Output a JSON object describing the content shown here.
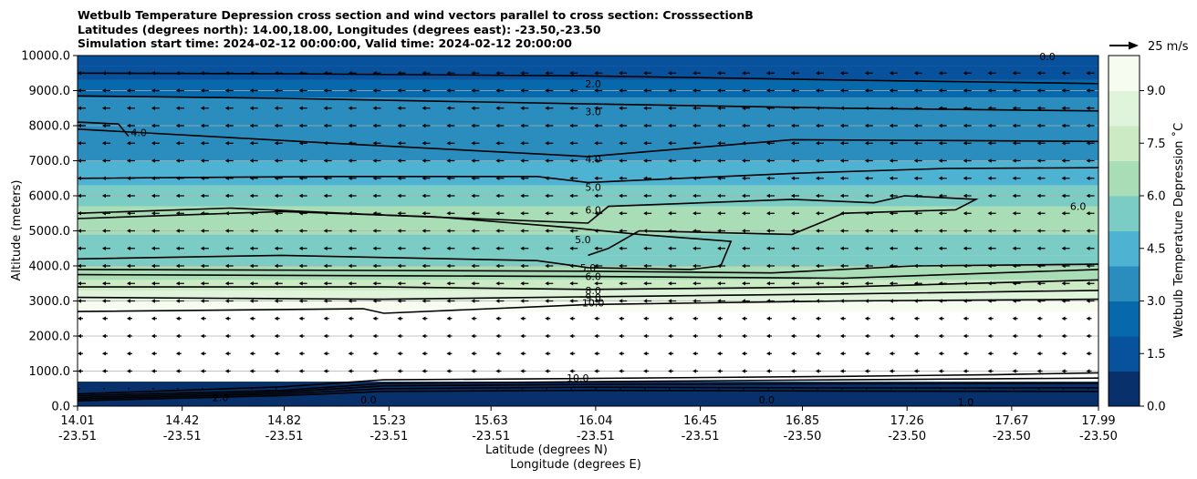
{
  "title": {
    "line1": "Wetbulb Temperature Depression cross section and wind vectors parallel to cross section: CrosssectionB",
    "line2": "Latitudes (degrees north): 14.00,18.00, Longitudes (degrees east): -23.50,-23.50",
    "line3": "Simulation start time: 2024-02-12 00:00:00, Valid time: 2024-02-12 20:00:00"
  },
  "chart_data": {
    "type": "heatmap",
    "ylabel": "Altitude (meters)",
    "xlabel": "Latitude (degrees N)",
    "xlabel2": "Longitude (degrees E)",
    "ylim": [
      0,
      10000
    ],
    "yticks": [
      "0.0",
      "1000.0",
      "2000.0",
      "3000.0",
      "4000.0",
      "5000.0",
      "6000.0",
      "7000.0",
      "8000.0",
      "9000.0",
      "10000.0"
    ],
    "xticks": [
      {
        "lat": "14.01",
        "lon": "-23.51",
        "pos": 0.0
      },
      {
        "lat": "14.42",
        "lon": "-23.51",
        "pos": 0.1025
      },
      {
        "lat": "14.82",
        "lon": "-23.51",
        "pos": 0.2025
      },
      {
        "lat": "15.23",
        "lon": "-23.51",
        "pos": 0.305
      },
      {
        "lat": "15.63",
        "lon": "-23.51",
        "pos": 0.405
      },
      {
        "lat": "16.04",
        "lon": "-23.51",
        "pos": 0.5075
      },
      {
        "lat": "16.45",
        "lon": "-23.51",
        "pos": 0.61
      },
      {
        "lat": "16.85",
        "lon": "-23.50",
        "pos": 0.71
      },
      {
        "lat": "17.26",
        "lon": "-23.50",
        "pos": 0.8125
      },
      {
        "lat": "17.67",
        "lon": "-23.50",
        "pos": 0.915
      },
      {
        "lat": "17.99",
        "lon": "-23.50",
        "pos": 1.0
      }
    ],
    "grid": true,
    "colorbar": {
      "label": "Wetbulb Temperature Depression ˚C",
      "ticks": [
        "0.0",
        "1.5",
        "3.0",
        "4.5",
        "6.0",
        "7.5",
        "9.0"
      ],
      "range": [
        0,
        10
      ]
    },
    "wind_key": "25 m/s",
    "layers": [
      {
        "bottom": 0,
        "top": 700,
        "value": 0.5
      },
      {
        "bottom": 700,
        "top": 2700,
        "value": null
      },
      {
        "bottom": 2700,
        "top": 3000,
        "value": 9.7
      },
      {
        "bottom": 3000,
        "top": 3300,
        "value": 8.5
      },
      {
        "bottom": 3300,
        "top": 3600,
        "value": 7.5
      },
      {
        "bottom": 3600,
        "top": 4000,
        "value": 6.5
      },
      {
        "bottom": 4000,
        "top": 4300,
        "value": 5.4
      },
      {
        "bottom": 4300,
        "top": 4900,
        "value": 5.9
      },
      {
        "bottom": 4900,
        "top": 5700,
        "value": 6.6
      },
      {
        "bottom": 5700,
        "top": 6300,
        "value": 5.5
      },
      {
        "bottom": 6300,
        "top": 7000,
        "value": 4.5
      },
      {
        "bottom": 7000,
        "top": 8000,
        "value": 3.8
      },
      {
        "bottom": 8000,
        "top": 8800,
        "value": 3.2
      },
      {
        "bottom": 8800,
        "top": 9300,
        "value": 2.3
      },
      {
        "bottom": 9300,
        "top": 9700,
        "value": 1.5
      },
      {
        "bottom": 9700,
        "top": 10000,
        "value": 0.8
      }
    ],
    "contour_labels": [
      {
        "text": "2.0",
        "pos": 0.505,
        "alt": 9200
      },
      {
        "text": "3.0",
        "pos": 0.505,
        "alt": 8400
      },
      {
        "text": "4.0",
        "pos": 0.505,
        "alt": 7050
      },
      {
        "text": "5.0",
        "pos": 0.505,
        "alt": 6250
      },
      {
        "text": "6.0",
        "pos": 0.505,
        "alt": 5600
      },
      {
        "text": "5.0",
        "pos": 0.495,
        "alt": 4750
      },
      {
        "text": "5.0",
        "pos": 0.5,
        "alt": 3950
      },
      {
        "text": "6.0",
        "pos": 0.505,
        "alt": 3700
      },
      {
        "text": "8.0",
        "pos": 0.505,
        "alt": 3300
      },
      {
        "text": "9.0",
        "pos": 0.505,
        "alt": 3100
      },
      {
        "text": "10.0",
        "pos": 0.505,
        "alt": 2950
      },
      {
        "text": "10.0",
        "pos": 0.49,
        "alt": 800
      },
      {
        "text": "4.0",
        "pos": 0.06,
        "alt": 7800
      },
      {
        "text": "6.0",
        "pos": 0.98,
        "alt": 5700
      },
      {
        "text": "0.0",
        "pos": 0.285,
        "alt": 180
      },
      {
        "text": "0.0",
        "pos": 0.675,
        "alt": 180
      },
      {
        "text": "1.0",
        "pos": 0.87,
        "alt": 120
      },
      {
        "text": "2.0",
        "pos": 0.14,
        "alt": 250
      },
      {
        "text": "0.0",
        "pos": 0.95,
        "alt": 9980
      }
    ],
    "contours": [
      {
        "value": "2.0",
        "points": [
          [
            0,
            9500
          ],
          [
            0.2,
            9480
          ],
          [
            0.5,
            9420
          ],
          [
            0.75,
            9300
          ],
          [
            1,
            9200
          ]
        ]
      },
      {
        "value": "3.0",
        "points": [
          [
            0,
            8850
          ],
          [
            0.2,
            8780
          ],
          [
            0.5,
            8620
          ],
          [
            0.75,
            8500
          ],
          [
            1,
            8420
          ]
        ]
      },
      {
        "value": "4.0",
        "points": [
          [
            0,
            7900
          ],
          [
            0.25,
            7500
          ],
          [
            0.5,
            7120
          ],
          [
            0.7,
            7600
          ],
          [
            1,
            7550
          ]
        ]
      },
      {
        "value": "4.0",
        "points": [
          [
            0,
            8100
          ],
          [
            0.04,
            8050
          ],
          [
            0.05,
            7700
          ]
        ]
      },
      {
        "value": "5.0",
        "points": [
          [
            0,
            6500
          ],
          [
            0.25,
            6550
          ],
          [
            0.45,
            6550
          ],
          [
            0.5,
            6380
          ],
          [
            0.7,
            6640
          ],
          [
            0.85,
            6780
          ],
          [
            1,
            6800
          ]
        ]
      },
      {
        "value": "6.0",
        "points": [
          [
            0,
            5500
          ],
          [
            0.15,
            5650
          ],
          [
            0.3,
            5450
          ],
          [
            0.5,
            5220
          ],
          [
            0.52,
            5700
          ],
          [
            0.7,
            5900
          ],
          [
            0.78,
            5800
          ],
          [
            0.81,
            6000
          ],
          [
            0.88,
            5900
          ],
          [
            0.86,
            5600
          ],
          [
            0.75,
            5500
          ],
          [
            0.7,
            4900
          ],
          [
            0.55,
            5000
          ],
          [
            0.52,
            4500
          ],
          [
            0.5,
            4300
          ]
        ]
      },
      {
        "value": "5.0",
        "points": [
          [
            0,
            4200
          ],
          [
            0.2,
            4300
          ],
          [
            0.45,
            4150
          ],
          [
            0.5,
            3950
          ],
          [
            0.6,
            3900
          ],
          [
            0.63,
            4000
          ],
          [
            0.64,
            4700
          ],
          [
            0.55,
            4900
          ],
          [
            0.48,
            5100
          ],
          [
            0.35,
            5400
          ],
          [
            0.2,
            5550
          ],
          [
            0,
            5350
          ]
        ]
      },
      {
        "value": "5.0",
        "points": [
          [
            0,
            3900
          ],
          [
            0.3,
            3870
          ],
          [
            0.5,
            3850
          ],
          [
            0.68,
            3800
          ],
          [
            0.82,
            4000
          ],
          [
            1,
            4050
          ]
        ]
      },
      {
        "value": "6.0",
        "points": [
          [
            0,
            3750
          ],
          [
            0.3,
            3720
          ],
          [
            0.5,
            3700
          ],
          [
            0.75,
            3650
          ],
          [
            1,
            3900
          ]
        ]
      },
      {
        "value": "8.0",
        "points": [
          [
            0,
            3400
          ],
          [
            0.3,
            3400
          ],
          [
            0.5,
            3330
          ],
          [
            0.75,
            3400
          ],
          [
            1,
            3600
          ]
        ]
      },
      {
        "value": "9.0",
        "points": [
          [
            0,
            3100
          ],
          [
            0.3,
            3050
          ],
          [
            0.5,
            3120
          ],
          [
            0.75,
            3200
          ],
          [
            1,
            3300
          ]
        ]
      },
      {
        "value": "10.0",
        "points": [
          [
            0,
            2700
          ],
          [
            0.28,
            2780
          ],
          [
            0.3,
            2650
          ],
          [
            0.5,
            2900
          ],
          [
            0.75,
            3000
          ],
          [
            1,
            3050
          ]
        ]
      },
      {
        "value": "10.0",
        "points": [
          [
            0,
            350
          ],
          [
            0.2,
            550
          ],
          [
            0.3,
            750
          ],
          [
            0.5,
            790
          ],
          [
            0.75,
            850
          ],
          [
            0.9,
            900
          ],
          [
            1,
            950
          ]
        ]
      },
      {
        "value": "8.0",
        "points": [
          [
            0,
            300
          ],
          [
            0.2,
            450
          ],
          [
            0.3,
            650
          ],
          [
            0.5,
            700
          ],
          [
            0.75,
            750
          ],
          [
            1,
            800
          ]
        ]
      },
      {
        "value": "6.0",
        "points": [
          [
            0,
            250
          ],
          [
            0.2,
            400
          ],
          [
            0.3,
            580
          ],
          [
            0.5,
            620
          ],
          [
            0.75,
            640
          ],
          [
            1,
            650
          ]
        ]
      },
      {
        "value": "4.0",
        "points": [
          [
            0,
            200
          ],
          [
            0.2,
            350
          ],
          [
            0.3,
            500
          ],
          [
            0.5,
            540
          ],
          [
            0.75,
            520
          ],
          [
            1,
            520
          ]
        ]
      },
      {
        "value": "2.0",
        "points": [
          [
            0,
            150
          ],
          [
            0.2,
            300
          ],
          [
            0.3,
            420
          ],
          [
            0.5,
            450
          ],
          [
            0.75,
            430
          ],
          [
            1,
            420
          ]
        ]
      }
    ]
  }
}
